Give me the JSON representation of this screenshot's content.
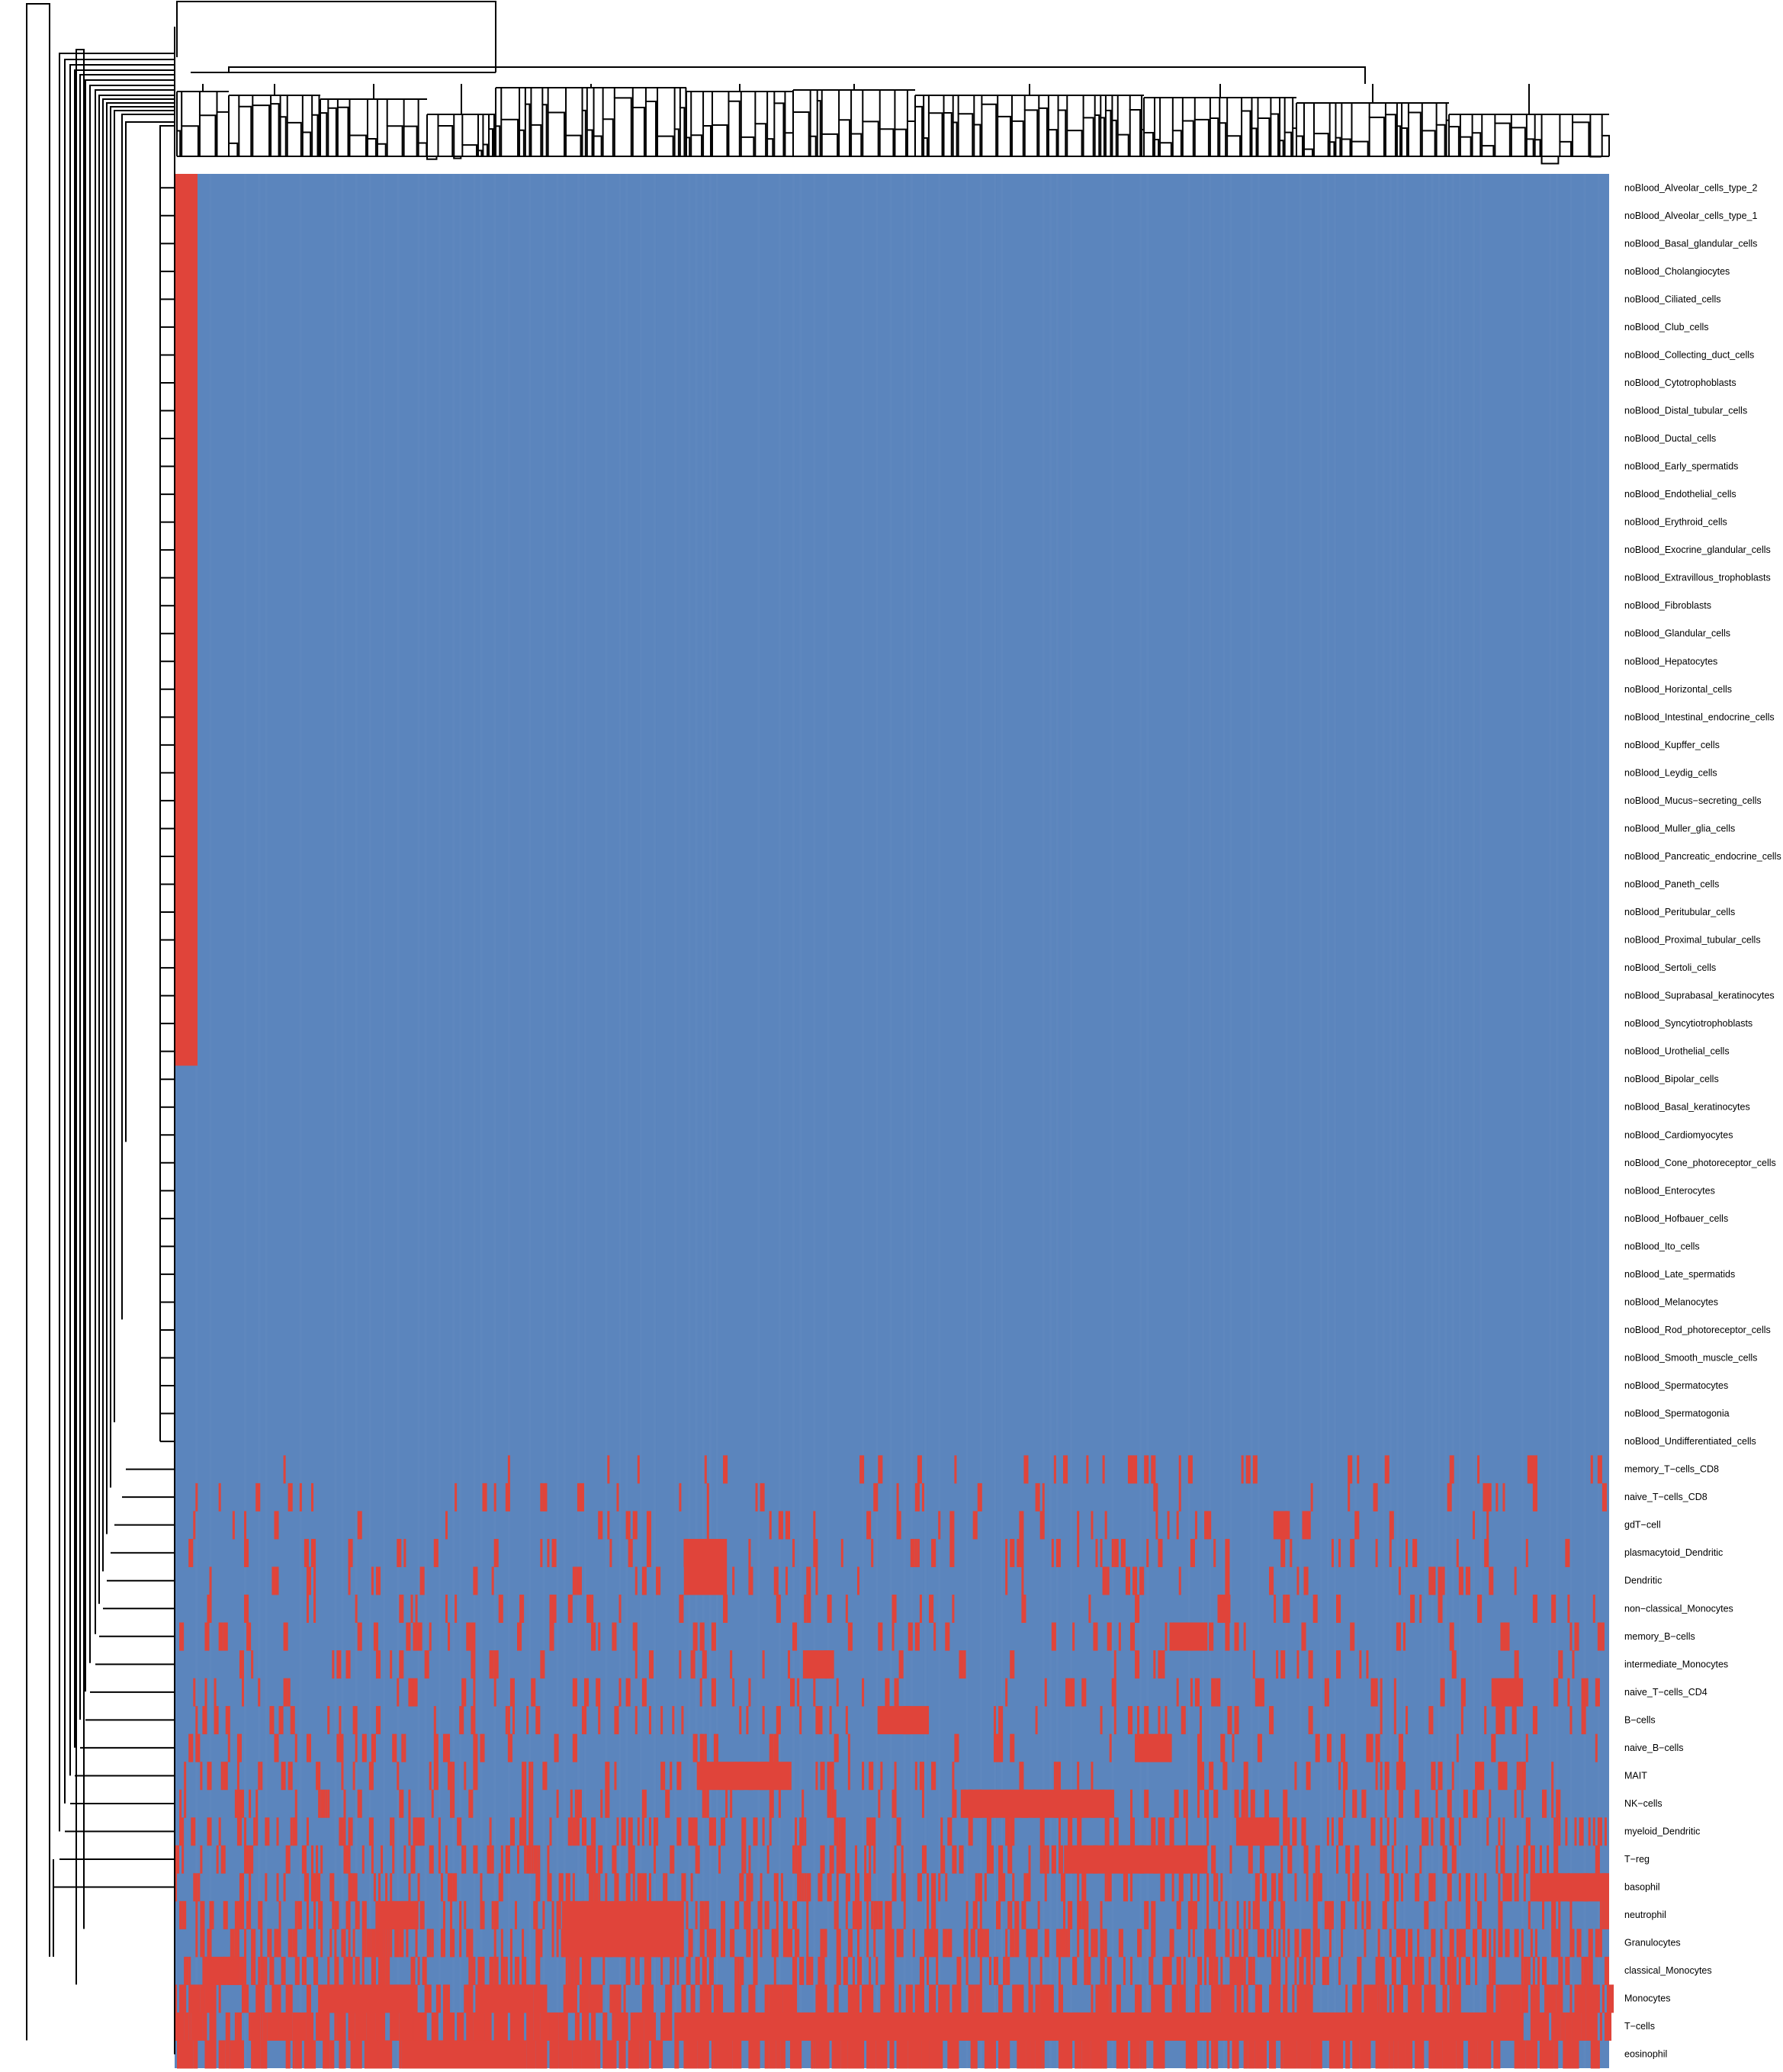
{
  "chart_data": {
    "type": "heatmap",
    "title": "",
    "xlabel": "",
    "ylabel": "",
    "colors": {
      "low": "#5b85bd",
      "high": "#e0443a",
      "low_alt": "#6289c0"
    },
    "column_dendrogram": true,
    "row_dendrogram": true,
    "columns_estimated": 620,
    "rows": [
      "noBlood_Alveolar_cells_type_2",
      "noBlood_Alveolar_cells_type_1",
      "noBlood_Basal_glandular_cells",
      "noBlood_Cholangiocytes",
      "noBlood_Ciliated_cells",
      "noBlood_Club_cells",
      "noBlood_Collecting_duct_cells",
      "noBlood_Cytotrophoblasts",
      "noBlood_Distal_tubular_cells",
      "noBlood_Ductal_cells",
      "noBlood_Early_spermatids",
      "noBlood_Endothelial_cells",
      "noBlood_Erythroid_cells",
      "noBlood_Exocrine_glandular_cells",
      "noBlood_Extravillous_trophoblasts",
      "noBlood_Fibroblasts",
      "noBlood_Glandular_cells",
      "noBlood_Hepatocytes",
      "noBlood_Horizontal_cells",
      "noBlood_Intestinal_endocrine_cells",
      "noBlood_Kupffer_cells",
      "noBlood_Leydig_cells",
      "noBlood_Mucus−secreting_cells",
      "noBlood_Muller_glia_cells",
      "noBlood_Pancreatic_endocrine_cells",
      "noBlood_Paneth_cells",
      "noBlood_Peritubular_cells",
      "noBlood_Proximal_tubular_cells",
      "noBlood_Sertoli_cells",
      "noBlood_Suprabasal_keratinocytes",
      "noBlood_Syncytiotrophoblasts",
      "noBlood_Urothelial_cells",
      "noBlood_Bipolar_cells",
      "noBlood_Basal_keratinocytes",
      "noBlood_Cardiomyocytes",
      "noBlood_Cone_photoreceptor_cells",
      "noBlood_Enterocytes",
      "noBlood_Hofbauer_cells",
      "noBlood_Ito_cells",
      "noBlood_Late_spermatids",
      "noBlood_Melanocytes",
      "noBlood_Rod_photoreceptor_cells",
      "noBlood_Smooth_muscle_cells",
      "noBlood_Spermatocytes",
      "noBlood_Spermatogonia",
      "noBlood_Undifferentiated_cells",
      "memory_T−cells_CD8",
      "naive_T−cells_CD8",
      "gdT−cell",
      "plasmacytoid_Dendritic",
      "Dendritic",
      "non−classical_Monocytes",
      "memory_B−cells",
      "intermediate_Monocytes",
      "naive_T−cells_CD4",
      "B−cells",
      "naive_B−cells",
      "MAIT",
      "NK−cells",
      "myeloid_Dendritic",
      "T−reg",
      "basophil",
      "neutrophil",
      "Granulocytes",
      "classical_Monocytes",
      "Monocytes",
      "T−cells",
      "eosinophil"
    ],
    "row_red_fraction": [
      0.015,
      0.015,
      0.015,
      0.015,
      0.015,
      0.015,
      0.015,
      0.015,
      0.015,
      0.015,
      0.015,
      0.015,
      0.015,
      0.015,
      0.015,
      0.015,
      0.015,
      0.015,
      0.015,
      0.015,
      0.015,
      0.015,
      0.015,
      0.015,
      0.015,
      0.015,
      0.015,
      0.015,
      0.015,
      0.015,
      0.015,
      0.015,
      0,
      0,
      0,
      0,
      0,
      0,
      0,
      0,
      0,
      0,
      0,
      0,
      0,
      0,
      0.05,
      0.05,
      0.07,
      0.09,
      0.07,
      0.07,
      0.09,
      0.09,
      0.1,
      0.12,
      0.12,
      0.13,
      0.16,
      0.2,
      0.22,
      0.25,
      0.25,
      0.3,
      0.3,
      0.35,
      0.6,
      0.55
    ],
    "solid_red_blocks": [
      {
        "row": 46,
        "x0": 0.943,
        "x1": 0.95
      },
      {
        "row": 47,
        "x0": 0.912,
        "x1": 0.918
      },
      {
        "row": 48,
        "x0": 0.766,
        "x1": 0.776
      },
      {
        "row": 48,
        "x0": 0.786,
        "x1": 0.792
      },
      {
        "row": 49,
        "x0": 0.355,
        "x1": 0.385
      },
      {
        "row": 50,
        "x0": 0.355,
        "x1": 0.385
      },
      {
        "row": 51,
        "x0": 0.727,
        "x1": 0.736
      },
      {
        "row": 52,
        "x0": 0.696,
        "x1": 0.72
      },
      {
        "row": 53,
        "x0": 0.438,
        "x1": 0.459
      },
      {
        "row": 54,
        "x0": 0.918,
        "x1": 0.94
      },
      {
        "row": 55,
        "x0": 0.49,
        "x1": 0.525
      },
      {
        "row": 56,
        "x0": 0.672,
        "x1": 0.694
      },
      {
        "row": 57,
        "x0": 0.364,
        "x1": 0.43
      },
      {
        "row": 58,
        "x0": 0.548,
        "x1": 0.655
      },
      {
        "row": 59,
        "x0": 0.74,
        "x1": 0.77
      },
      {
        "row": 60,
        "x0": 0.62,
        "x1": 0.72
      },
      {
        "row": 61,
        "x0": 0.945,
        "x1": 1.0
      },
      {
        "row": 62,
        "x0": 0.14,
        "x1": 0.17
      },
      {
        "row": 62,
        "x0": 0.27,
        "x1": 0.355
      },
      {
        "row": 63,
        "x0": 0.27,
        "x1": 0.355
      },
      {
        "row": 64,
        "x0": 0.02,
        "x1": 0.045
      },
      {
        "row": 65,
        "x0": 0.1,
        "x1": 0.165
      },
      {
        "row": 65,
        "x0": 0.21,
        "x1": 0.25
      },
      {
        "row": 66,
        "x0": 0.355,
        "x1": 0.94
      },
      {
        "row": 67,
        "x0": 0.16,
        "x1": 0.24
      }
    ]
  }
}
